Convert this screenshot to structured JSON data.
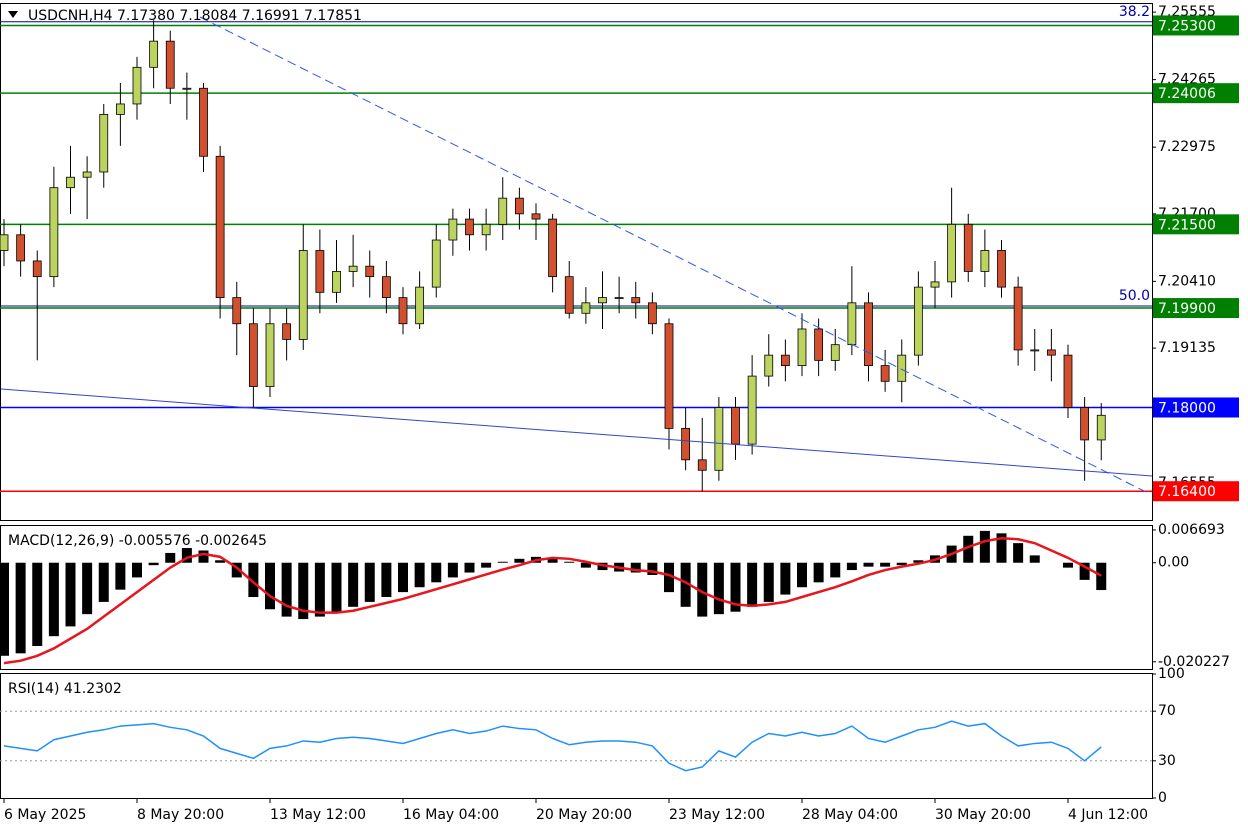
{
  "chart_data": [
    {
      "type": "candlestick",
      "title": "USDCNH,H4  7.17380 7.18084 7.16991 7.17851",
      "categories": [
        "6 May 2025",
        null,
        null,
        null,
        null,
        null,
        null,
        null,
        "8 May 20:00",
        null,
        null,
        null,
        null,
        null,
        null,
        null,
        "13 May 12:00",
        null,
        null,
        null,
        null,
        null,
        null,
        null,
        "16 May 04:00",
        null,
        null,
        null,
        null,
        null,
        null,
        null,
        "20 May 20:00",
        null,
        null,
        null,
        null,
        null,
        null,
        null,
        "23 May 12:00",
        null,
        null,
        null,
        null,
        null,
        null,
        null,
        "28 May 04:00",
        null,
        null,
        null,
        null,
        null,
        null,
        null,
        "30 May 20:00",
        null,
        null,
        null,
        null,
        null,
        null,
        null,
        "4 Jun 12:00",
        null,
        null
      ],
      "open": [
        7.21,
        7.213,
        7.208,
        7.205,
        7.222,
        7.224,
        7.225,
        7.236,
        7.238,
        7.245,
        7.25,
        7.241,
        7.241,
        7.228,
        7.201,
        7.196,
        7.184,
        7.196,
        7.193,
        7.21,
        7.202,
        7.206,
        7.207,
        7.205,
        7.201,
        7.196,
        7.203,
        7.212,
        7.216,
        7.213,
        7.215,
        7.22,
        7.217,
        7.216,
        7.205,
        7.198,
        7.2,
        7.201,
        7.201,
        7.2,
        7.196,
        7.176,
        7.17,
        7.168,
        7.18,
        7.173,
        7.186,
        7.19,
        7.188,
        7.195,
        7.189,
        7.192,
        7.2,
        7.188,
        7.185,
        7.19,
        7.203,
        7.204,
        7.215,
        7.206,
        7.21,
        7.203,
        7.191,
        7.191,
        7.19,
        7.18,
        7.1738
      ],
      "high": [
        7.216,
        7.215,
        7.21,
        7.226,
        7.23,
        7.228,
        7.238,
        7.242,
        7.247,
        7.254,
        7.252,
        7.244,
        7.242,
        7.23,
        7.204,
        7.199,
        7.199,
        7.199,
        7.215,
        7.214,
        7.212,
        7.213,
        7.21,
        7.208,
        7.203,
        7.206,
        7.215,
        7.218,
        7.218,
        7.218,
        7.224,
        7.222,
        7.219,
        7.217,
        7.208,
        7.203,
        7.206,
        7.205,
        7.204,
        7.202,
        7.197,
        7.18,
        7.178,
        7.182,
        7.182,
        7.19,
        7.194,
        7.193,
        7.198,
        7.197,
        7.195,
        7.207,
        7.202,
        7.191,
        7.193,
        7.206,
        7.208,
        7.222,
        7.217,
        7.214,
        7.212,
        7.205,
        7.195,
        7.195,
        7.192,
        7.182,
        7.18084
      ],
      "low": [
        7.207,
        7.205,
        7.189,
        7.203,
        7.217,
        7.216,
        7.222,
        7.23,
        7.235,
        7.241,
        7.238,
        7.235,
        7.225,
        7.197,
        7.19,
        7.18,
        7.182,
        7.189,
        7.191,
        7.198,
        7.2,
        7.203,
        7.201,
        7.198,
        7.194,
        7.195,
        7.201,
        7.209,
        7.21,
        7.21,
        7.212,
        7.214,
        7.212,
        7.202,
        7.197,
        7.196,
        7.195,
        7.198,
        7.197,
        7.194,
        7.172,
        7.168,
        7.164,
        7.166,
        7.17,
        7.171,
        7.184,
        7.185,
        7.186,
        7.186,
        7.187,
        7.19,
        7.185,
        7.183,
        7.181,
        7.188,
        7.199,
        7.201,
        7.204,
        7.203,
        7.201,
        7.188,
        7.187,
        7.185,
        7.178,
        7.166,
        7.16991
      ],
      "close": [
        7.213,
        7.208,
        7.205,
        7.222,
        7.224,
        7.225,
        7.236,
        7.238,
        7.245,
        7.25,
        7.241,
        7.241,
        7.228,
        7.201,
        7.196,
        7.184,
        7.196,
        7.193,
        7.21,
        7.202,
        7.206,
        7.207,
        7.205,
        7.201,
        7.196,
        7.203,
        7.212,
        7.216,
        7.213,
        7.215,
        7.22,
        7.217,
        7.216,
        7.205,
        7.198,
        7.2,
        7.201,
        7.201,
        7.2,
        7.196,
        7.176,
        7.17,
        7.168,
        7.18,
        7.173,
        7.186,
        7.19,
        7.188,
        7.195,
        7.189,
        7.192,
        7.2,
        7.188,
        7.185,
        7.19,
        7.203,
        7.204,
        7.215,
        7.206,
        7.21,
        7.203,
        7.191,
        7.191,
        7.19,
        7.18,
        7.1738,
        7.17851
      ],
      "up_color": "#bcd35f",
      "down_color": "#d0502f",
      "ylim": [
        7.1585,
        7.2571
      ],
      "yticks": [
        7.16555,
        7.19135,
        {
          "value": 7.2041,
          "label": "7.20410"
        },
        {
          "value": 7.217,
          "label": "7.21700"
        },
        7.22975,
        7.24265,
        7.25555
      ],
      "levels": [
        {
          "value": 7.253,
          "label": "7.25300",
          "color": "#008000"
        },
        {
          "value": 7.24006,
          "label": "7.24006",
          "color": "#008000"
        },
        {
          "value": 7.215,
          "label": "7.21500",
          "color": "#008000"
        },
        {
          "value": 7.199,
          "label": "7.19900",
          "color": "#008000"
        },
        {
          "value": 7.18,
          "label": "7.18000",
          "color": "#0000ff"
        },
        {
          "value": 7.164,
          "label": "7.16400",
          "color": "#ff0000"
        }
      ],
      "fib_levels": [
        {
          "value": 7.2537,
          "label": "38.2",
          "color": "#0000aa"
        },
        {
          "value": 7.1994,
          "label": "50.0",
          "color": "#0000aa"
        }
      ]
    },
    {
      "type": "macd",
      "title": "MACD(12,26,9) -0.005576 -0.002645",
      "values": [
        -0.019,
        -0.0185,
        -0.017,
        -0.015,
        -0.013,
        -0.0105,
        -0.008,
        -0.0055,
        -0.003,
        -0.0005,
        0.002,
        0.003,
        0.0025,
        0.0005,
        -0.003,
        -0.007,
        -0.0095,
        -0.011,
        -0.0115,
        -0.011,
        -0.01,
        -0.009,
        -0.008,
        -0.007,
        -0.006,
        -0.005,
        -0.004,
        -0.003,
        -0.002,
        -0.001,
        0.0002,
        0.0008,
        0.0012,
        0.0008,
        0.0002,
        -0.001,
        -0.0015,
        -0.0018,
        -0.002,
        -0.0025,
        -0.006,
        -0.009,
        -0.011,
        -0.0105,
        -0.01,
        -0.009,
        -0.008,
        -0.0065,
        -0.005,
        -0.004,
        -0.003,
        -0.0015,
        -0.0008,
        -0.0008,
        -0.0005,
        0.0005,
        0.0015,
        0.0035,
        0.0055,
        0.0065,
        0.006,
        0.004,
        0.0015,
        0,
        -0.001,
        -0.0035,
        -0.005576
      ],
      "signal": [
        -0.0205,
        -0.02,
        -0.019,
        -0.0175,
        -0.0155,
        -0.0135,
        -0.011,
        -0.0085,
        -0.006,
        -0.0035,
        -0.001,
        0.001,
        0.0018,
        0.0012,
        -0.001,
        -0.004,
        -0.0068,
        -0.0088,
        -0.0098,
        -0.0102,
        -0.0102,
        -0.0098,
        -0.009,
        -0.0082,
        -0.0074,
        -0.0064,
        -0.0054,
        -0.0044,
        -0.0034,
        -0.0024,
        -0.0014,
        -0.0005,
        0.0005,
        0.001,
        0.0008,
        0.0002,
        -0.0005,
        -0.001,
        -0.0015,
        -0.0018,
        -0.0025,
        -0.004,
        -0.006,
        -0.0075,
        -0.0085,
        -0.0088,
        -0.0085,
        -0.008,
        -0.007,
        -0.006,
        -0.005,
        -0.0038,
        -0.0025,
        -0.0015,
        -0.0008,
        -0.0002,
        0.0006,
        0.0018,
        0.0032,
        0.0044,
        0.005,
        0.0048,
        0.004,
        0.0025,
        0.001,
        -0.0008,
        -0.002645
      ],
      "color": "#000000",
      "signal_color": "#e8141e",
      "ylim": [
        -0.0217,
        0.0075
      ],
      "yticks": [
        -0.020227,
        {
          "value": 0,
          "label": "0.00"
        },
        0.006693
      ]
    },
    {
      "type": "line",
      "title": "RSI(14) 41.2302",
      "values": [
        42,
        40,
        38,
        47,
        50,
        53,
        55,
        58,
        59,
        60,
        57,
        55,
        50,
        40,
        36,
        32,
        40,
        42,
        46,
        45,
        48,
        49,
        48,
        46,
        44,
        48,
        52,
        55,
        52,
        54,
        58,
        56,
        55,
        48,
        43,
        45,
        46,
        46,
        45,
        42,
        28,
        22,
        25,
        38,
        33,
        45,
        52,
        50,
        53,
        50,
        52,
        58,
        48,
        45,
        50,
        55,
        57,
        62,
        58,
        60,
        50,
        42,
        44,
        45,
        40,
        30,
        41.2302
      ],
      "color": "#1e90ff",
      "ylim": [
        0,
        100
      ],
      "yticks": [
        0,
        30,
        70,
        100
      ],
      "level_lines": [
        30,
        70
      ]
    }
  ]
}
